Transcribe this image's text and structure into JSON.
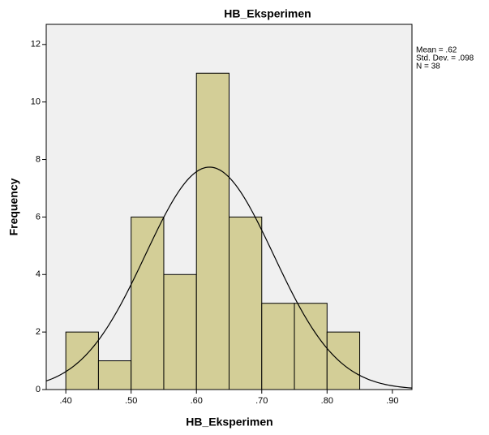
{
  "chart_data": {
    "type": "histogram",
    "title": "HB_Eksperimen",
    "x_label": "HB_Eksperimen",
    "y_label": "Frequency",
    "bins": [
      0.4,
      0.45,
      0.5,
      0.55,
      0.6,
      0.65,
      0.7,
      0.75,
      0.8,
      0.85
    ],
    "values": [
      2,
      1,
      6,
      4,
      11,
      6,
      3,
      3,
      2
    ],
    "color": "#d3ce97",
    "xlim": [
      0.37,
      0.93
    ],
    "xticks": [
      {
        "value": 0.4,
        "label": ".40"
      },
      {
        "value": 0.5,
        "label": ".50"
      },
      {
        "value": 0.6,
        "label": ".60"
      },
      {
        "value": 0.7,
        "label": ".70"
      },
      {
        "value": 0.8,
        "label": ".80"
      },
      {
        "value": 0.9,
        "label": ".90"
      }
    ],
    "ylim": [
      0,
      12.7
    ],
    "yticks": [
      0,
      2,
      4,
      6,
      8,
      10,
      12
    ],
    "normal_curve": {
      "mean": 0.62,
      "sd": 0.098,
      "n": 38,
      "labels": [
        "Mean = .62",
        "Std. Dev. = .098",
        "N = 38"
      ]
    }
  }
}
